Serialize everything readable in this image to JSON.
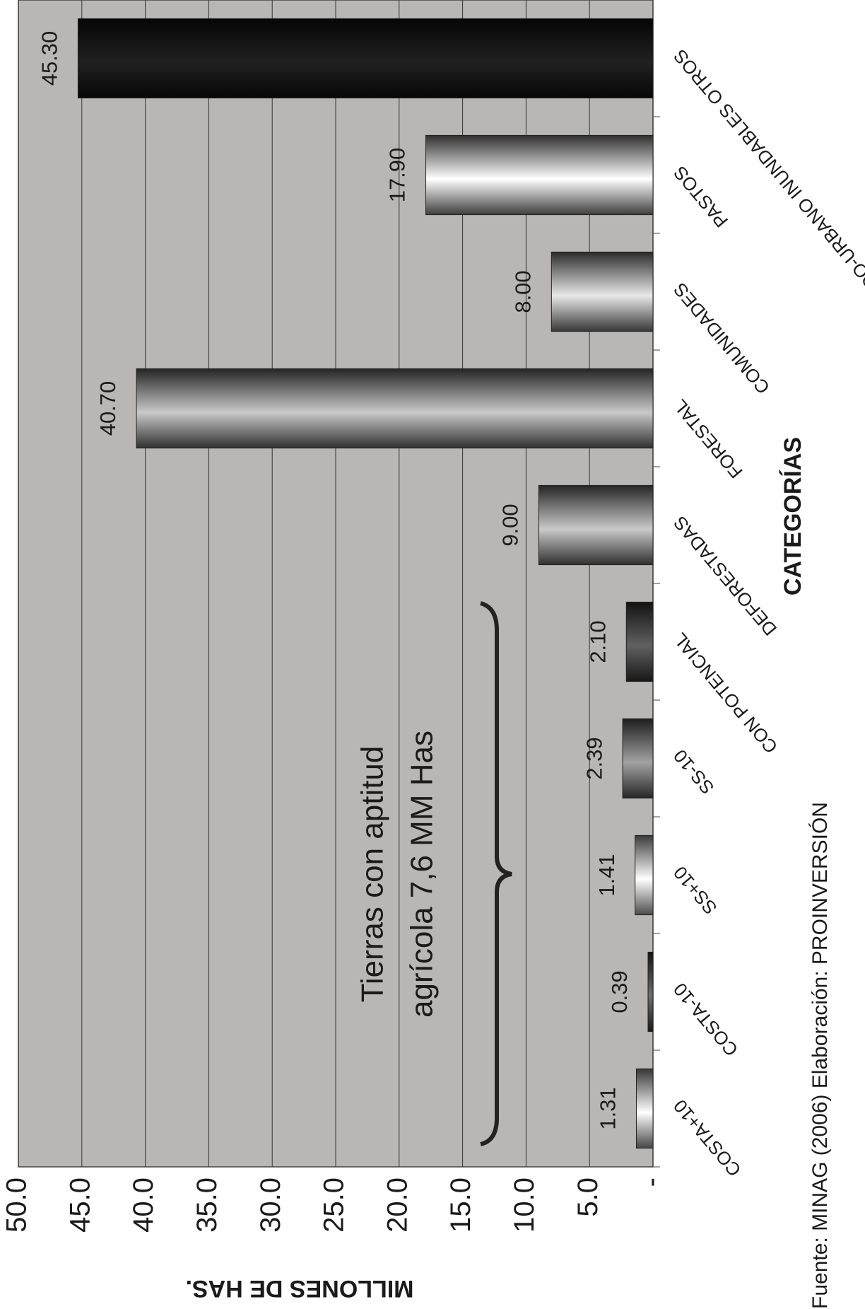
{
  "chart_data": {
    "type": "bar",
    "categories": [
      "COSTA+10",
      "COSTA-10",
      "SS+10",
      "SS-10",
      "CON POTENCIAL",
      "DEFORESTADAS",
      "FORESTAL",
      "COMUNIDADES",
      "PASTOS",
      "PROTEGIDO-URBANO INUNDABLES OTROS"
    ],
    "values": [
      1.31,
      0.39,
      1.41,
      2.39,
      2.1,
      9,
      40.7,
      8,
      17.9,
      45.3
    ],
    "value_labels": [
      "1.31",
      "0.39",
      "1.41",
      "2.39",
      "2.10",
      "9.00",
      "40.70",
      "8.00",
      "17.90",
      "45.30"
    ],
    "colors": [
      "#9a9a9a",
      "#3a3a3a",
      "#a8a8a8",
      "#555555",
      "#333333",
      "#6a6a6a",
      "#6a6a6a",
      "#7a7a7a",
      "#8a8a8a",
      "#111111"
    ],
    "ylim": [
      0,
      50
    ],
    "yticks": [
      {
        "value": 0,
        "label": "-"
      },
      {
        "value": 5,
        "label": "5.0"
      },
      {
        "value": 10,
        "label": "10.0"
      },
      {
        "value": 15,
        "label": "15.0"
      },
      {
        "value": 20,
        "label": "20.0"
      },
      {
        "value": 25,
        "label": "25.0"
      },
      {
        "value": 30,
        "label": "30.0"
      },
      {
        "value": 35,
        "label": "35.0"
      },
      {
        "value": 40,
        "label": "40.0"
      },
      {
        "value": 45,
        "label": "45.0"
      },
      {
        "value": 50,
        "label": "50.0"
      }
    ],
    "grid": true,
    "y_label": "MILLONES DE HAS.",
    "x_label": "CATEGORÍAS",
    "annotation": [
      "Tierras con aptitud",
      "agrícola 7,6 MM Has"
    ],
    "source": "Fuente: MINAG (2006) Elaboración: PROINVERSIÓN"
  }
}
